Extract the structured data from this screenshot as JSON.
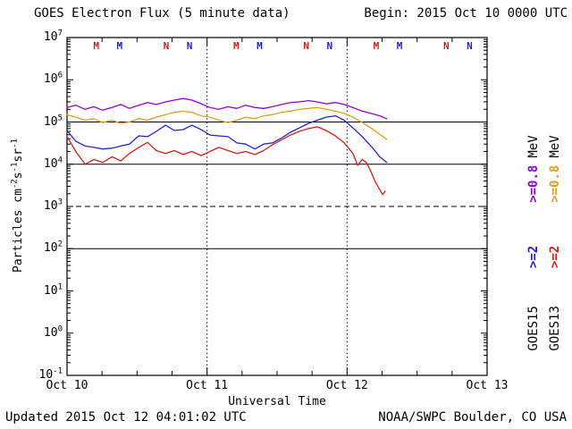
{
  "header": {
    "title": "GOES Electron Flux (5 minute data)",
    "begin": "Begin: 2015 Oct 10 0000 UTC"
  },
  "footer": {
    "updated": "Updated 2015 Oct 12 04:01:02 UTC",
    "source": "NOAA/SWPC Boulder, CO USA"
  },
  "axes": {
    "x_label": "Universal Time",
    "y_label": {
      "p1": "Particles cm",
      "s1": "-2",
      "p2": "s",
      "s2": "-1",
      "p3": "sr",
      "s3": "-1"
    }
  },
  "legend": {
    "columns": [
      {
        "sat": "GOES15",
        "e2": ">=2",
        "e08": ">=0.8",
        "mev": "MeV",
        "e2_color": "#2222cc",
        "e08_color": "#9400d3"
      },
      {
        "sat": "GOES13",
        "e2": ">=2",
        "e08": ">=0.8",
        "mev": "MeV",
        "e2_color": "#cc2020",
        "e08_color": "#e0a018"
      }
    ]
  },
  "chart_data": {
    "type": "line",
    "title": "GOES Electron Flux (5 minute data)",
    "xlabel": "Universal Time",
    "ylabel": "Particles cm-2 s-1 sr-1",
    "y_scale": "log",
    "ylim": [
      0.1,
      10000000
    ],
    "x_unit_hours_since": "2015 Oct 10 0000 UTC",
    "xlim_hours": [
      0,
      72
    ],
    "x_day_ticks": [
      {
        "label": "Oct 10",
        "hour": 0
      },
      {
        "label": "Oct 11",
        "hour": 24
      },
      {
        "label": "Oct 12",
        "hour": 48
      },
      {
        "label": "Oct 13",
        "hour": 72
      }
    ],
    "y_tick_exponents": [
      7,
      6,
      5,
      4,
      3,
      2,
      1,
      0,
      -1
    ],
    "h_gridlines_solid_exp": [
      5,
      4,
      2
    ],
    "threshold_dashed_exp": 3,
    "v_gridlines_hours": [
      24,
      48
    ],
    "satellite_markers": [
      {
        "hour": 5,
        "letter": "M",
        "color": "#cc2020"
      },
      {
        "hour": 9,
        "letter": "M",
        "color": "#2222cc"
      },
      {
        "hour": 17,
        "letter": "N",
        "color": "#cc2020"
      },
      {
        "hour": 21,
        "letter": "N",
        "color": "#2222cc"
      },
      {
        "hour": 29,
        "letter": "M",
        "color": "#cc2020"
      },
      {
        "hour": 33,
        "letter": "M",
        "color": "#2222cc"
      },
      {
        "hour": 41,
        "letter": "N",
        "color": "#cc2020"
      },
      {
        "hour": 45,
        "letter": "N",
        "color": "#2222cc"
      },
      {
        "hour": 53,
        "letter": "M",
        "color": "#cc2020"
      },
      {
        "hour": 57,
        "letter": "M",
        "color": "#2222cc"
      },
      {
        "hour": 65,
        "letter": "N",
        "color": "#cc2020"
      },
      {
        "hour": 69,
        "letter": "N",
        "color": "#2222cc"
      }
    ],
    "series": [
      {
        "name": "GOES13 >=2 MeV",
        "color": "#cc2020",
        "x_hours": [
          0,
          1.5,
          3.1,
          4.6,
          6.1,
          7.7,
          9.2,
          10.7,
          12.3,
          13.8,
          15.3,
          16.9,
          18.4,
          19.9,
          21.4,
          23,
          24.5,
          26,
          27.6,
          29.1,
          30.6,
          32.2,
          33.7,
          35.2,
          36.8,
          38.3,
          39.8,
          41.4,
          42.9,
          44.4,
          46,
          47.5,
          49,
          49.8,
          50.6,
          51.3,
          52.1,
          52.8,
          53.6,
          54.1,
          54.5
        ],
        "flux": [
          45000,
          20000,
          10000,
          13000,
          11000,
          15000,
          12000,
          18000,
          25000,
          33000,
          21000,
          18000,
          21000,
          17000,
          20000,
          16000,
          20000,
          25000,
          21000,
          18000,
          20000,
          17000,
          21000,
          29000,
          38000,
          49000,
          60000,
          70000,
          77000,
          63000,
          47000,
          32000,
          18000,
          9400,
          13000,
          11000,
          6700,
          3900,
          2500,
          1900,
          2300
        ]
      },
      {
        "name": "GOES15 >=2 MeV",
        "color": "#2222cc",
        "x_hours": [
          0,
          1.5,
          3.1,
          4.6,
          6.1,
          7.7,
          9.2,
          10.7,
          12.3,
          13.8,
          15.3,
          16.9,
          18.4,
          19.9,
          21.4,
          23,
          24.5,
          26,
          27.6,
          29.1,
          30.6,
          32.2,
          33.7,
          35.2,
          36.8,
          38.3,
          39.8,
          41.4,
          42.9,
          44.4,
          46,
          47.5,
          49,
          50.6,
          52.1,
          53.6,
          54.8
        ],
        "flux": [
          63000,
          35000,
          27000,
          25000,
          23000,
          24000,
          27000,
          30000,
          47000,
          45000,
          60000,
          84000,
          63000,
          66000,
          84000,
          66000,
          49000,
          47000,
          45000,
          32000,
          30000,
          23000,
          30000,
          32000,
          42000,
          57000,
          72000,
          93000,
          110000,
          130000,
          140000,
          110000,
          72000,
          45000,
          27000,
          15000,
          11000
        ]
      },
      {
        "name": "GOES13 >=0.8 MeV",
        "color": "#e0a018",
        "x_hours": [
          0,
          1.5,
          3.1,
          4.6,
          6.1,
          7.7,
          9.2,
          10.7,
          12.3,
          13.8,
          15.3,
          16.9,
          18.4,
          19.9,
          21.4,
          23,
          24.5,
          26,
          27.6,
          29.1,
          30.6,
          32.2,
          33.7,
          35.2,
          36.8,
          38.3,
          39.8,
          41.4,
          42.9,
          44.4,
          46,
          47.5,
          49,
          50.6,
          52.1,
          53.6,
          54.8
        ],
        "flux": [
          150000,
          130000,
          110000,
          120000,
          97000,
          110000,
          93000,
          100000,
          120000,
          110000,
          130000,
          150000,
          170000,
          180000,
          170000,
          140000,
          130000,
          110000,
          97000,
          110000,
          130000,
          120000,
          140000,
          150000,
          170000,
          180000,
          200000,
          210000,
          220000,
          200000,
          180000,
          160000,
          130000,
          97000,
          72000,
          51000,
          39000
        ]
      },
      {
        "name": "GOES15 >=0.8 MeV",
        "color": "#9400d3",
        "x_hours": [
          0,
          1.5,
          3.1,
          4.6,
          6.1,
          7.7,
          9.2,
          10.7,
          12.3,
          13.8,
          15.3,
          16.9,
          18.4,
          19.9,
          21.4,
          23,
          24.5,
          26,
          27.6,
          29.1,
          30.6,
          32.2,
          33.7,
          35.2,
          36.8,
          38.3,
          39.8,
          41.4,
          42.9,
          44.4,
          46,
          47.5,
          49,
          50.6,
          52.1,
          53.6,
          54.8
        ],
        "flux": [
          220000,
          250000,
          200000,
          230000,
          190000,
          220000,
          260000,
          210000,
          250000,
          290000,
          260000,
          300000,
          330000,
          360000,
          330000,
          270000,
          220000,
          200000,
          230000,
          210000,
          250000,
          220000,
          210000,
          230000,
          260000,
          290000,
          300000,
          320000,
          300000,
          270000,
          290000,
          260000,
          220000,
          180000,
          160000,
          140000,
          120000
        ]
      }
    ]
  }
}
